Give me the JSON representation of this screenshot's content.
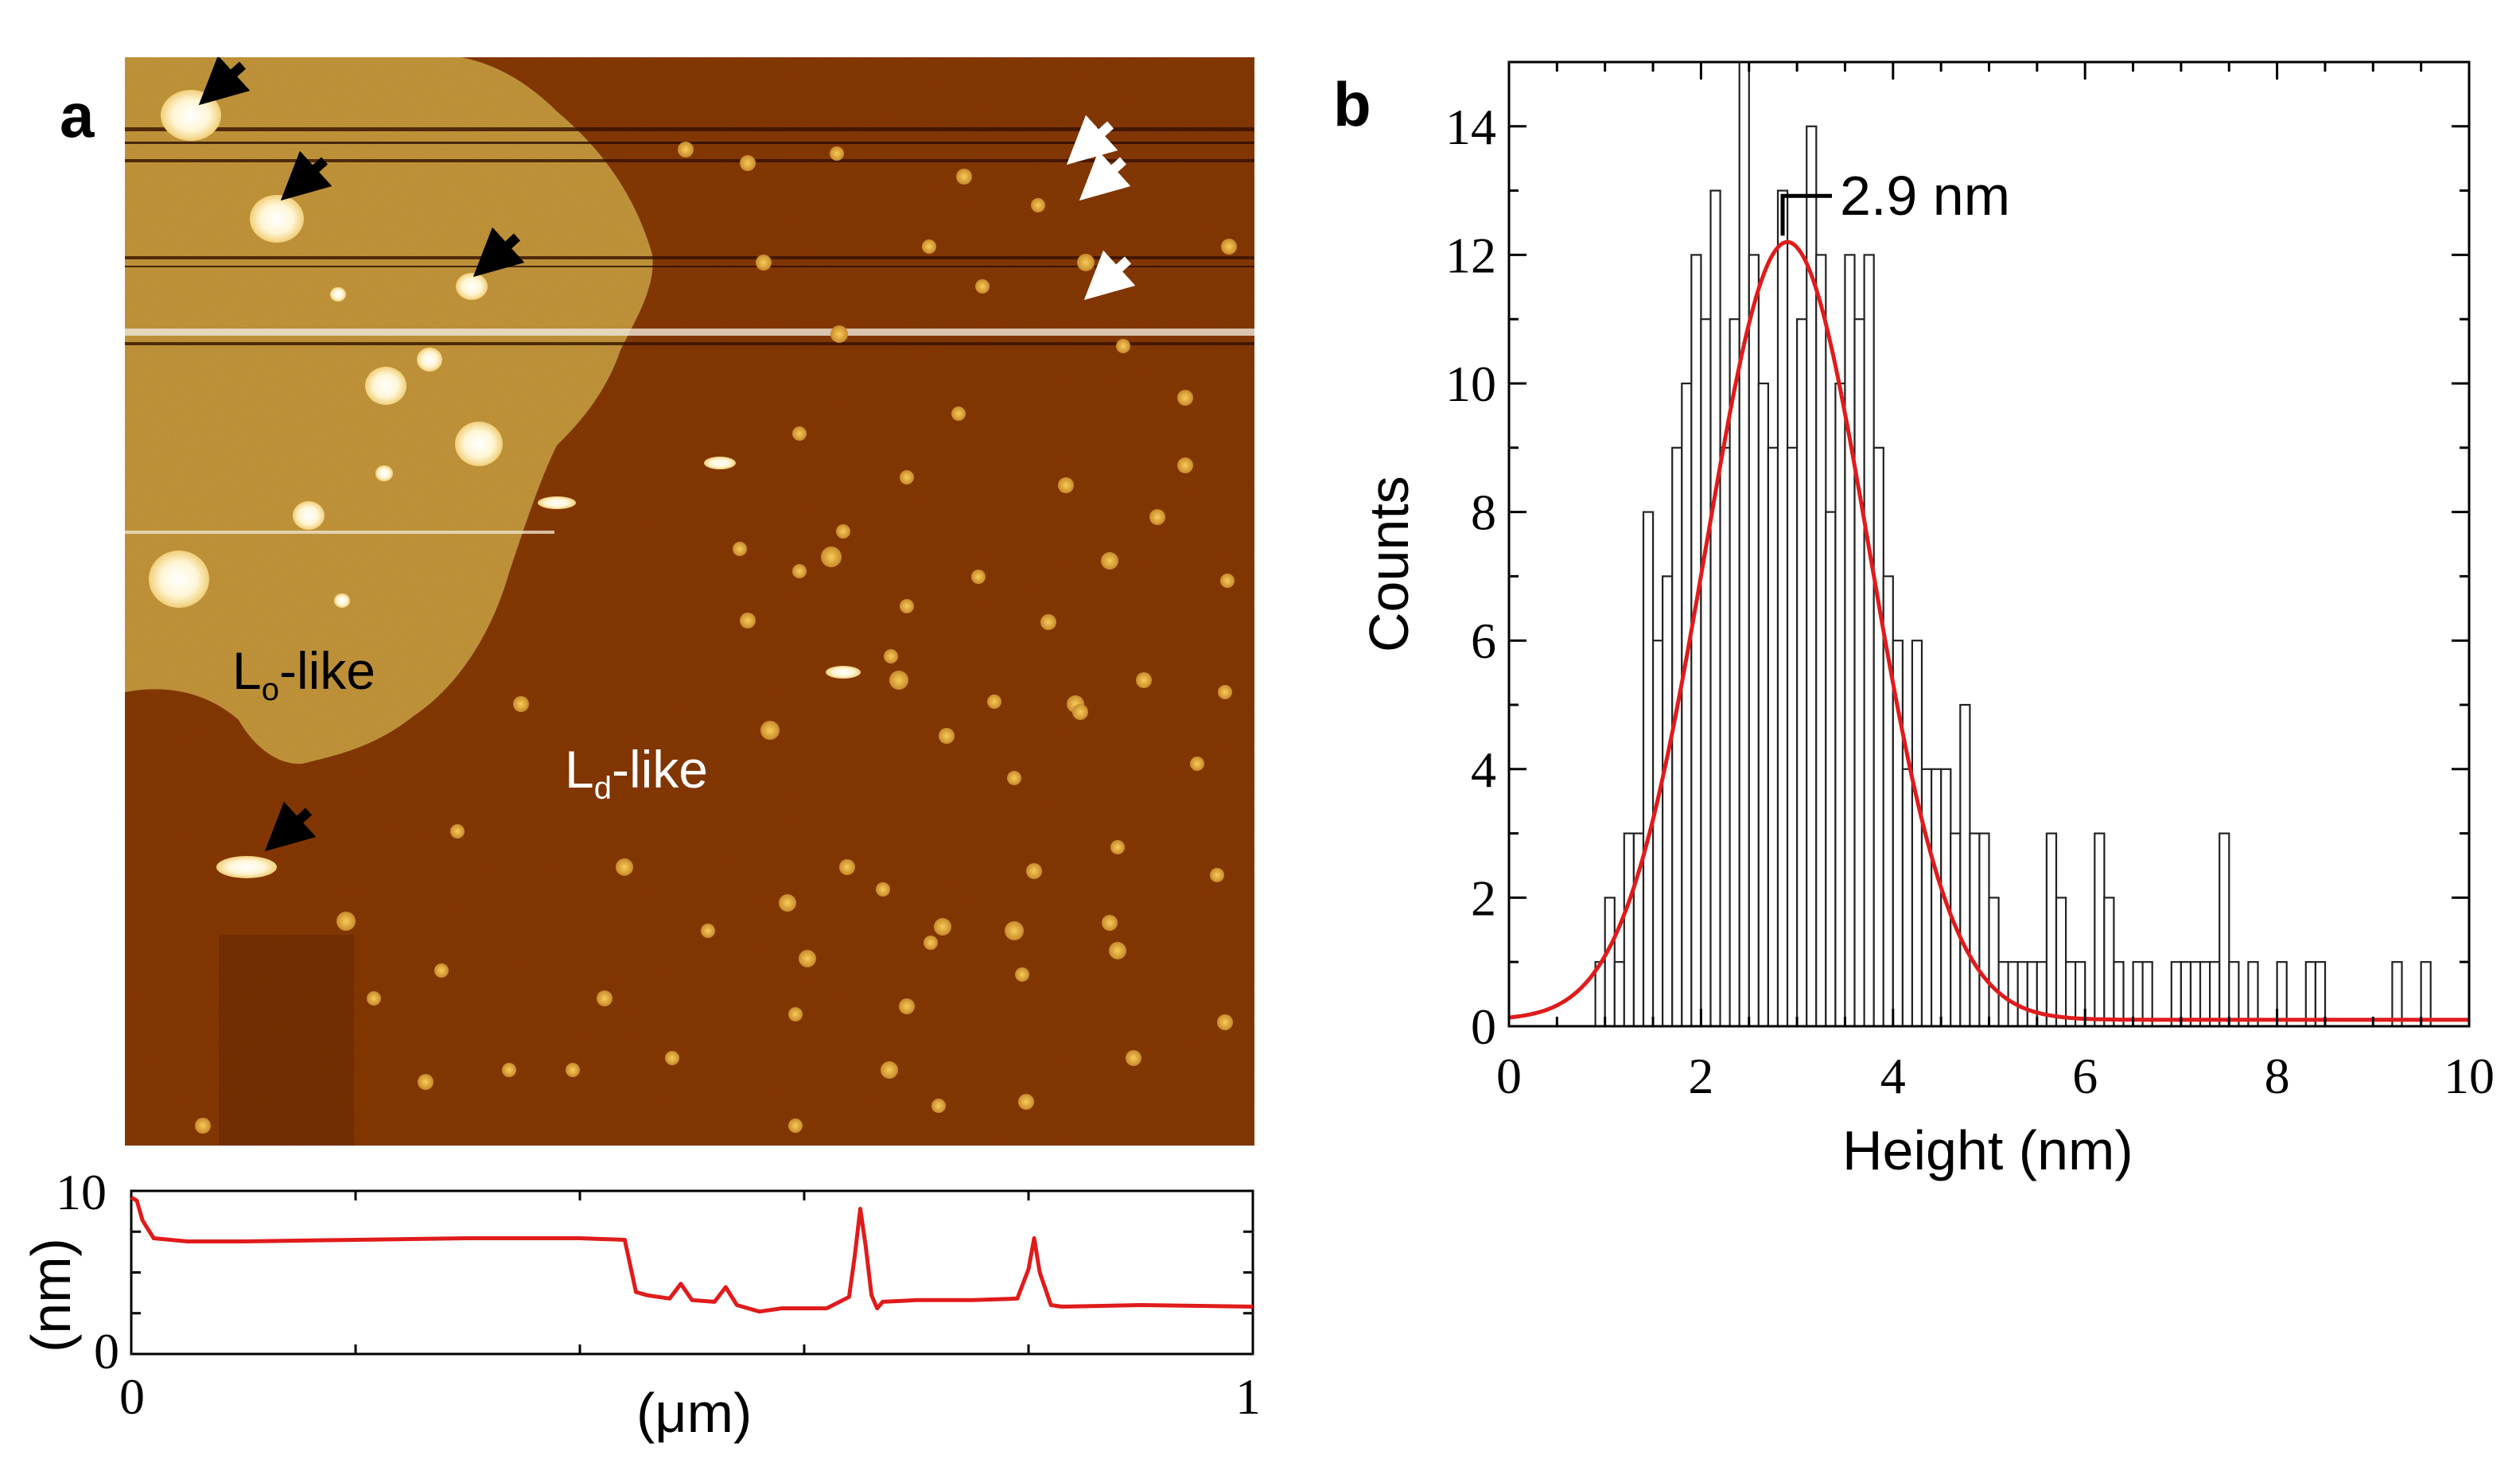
{
  "panels": {
    "a": {
      "letter": "a",
      "region_labels": [
        {
          "main": "L",
          "sub": "o",
          "suffix": "-like"
        },
        {
          "main": "L",
          "sub": "d",
          "suffix": "-like"
        }
      ],
      "colors": {
        "ld_phase": "#8a3a03",
        "lo_phase": "#c99a3c",
        "particle": "#e6b23c",
        "profile_line": "#e01b1b"
      }
    },
    "b": {
      "letter": "b",
      "peak_label": "2.9 nm"
    }
  },
  "chart_data": [
    {
      "type": "line",
      "panel": "a",
      "xlabel": "(μm)",
      "ylabel": "(nm)",
      "xlim": [
        0,
        1
      ],
      "ylim": [
        0,
        10
      ],
      "xticks": [
        "0",
        "1"
      ],
      "yticks": [
        "0",
        "10"
      ],
      "grid": false,
      "series": [
        {
          "x": [
            0,
            0.005,
            0.01,
            0.02,
            0.05,
            0.1,
            0.2,
            0.3,
            0.4,
            0.44,
            0.45,
            0.46,
            0.48,
            0.49,
            0.5,
            0.52,
            0.53,
            0.54,
            0.56,
            0.58,
            0.62,
            0.64,
            0.645,
            0.65,
            0.655,
            0.66,
            0.665,
            0.67,
            0.7,
            0.75,
            0.79,
            0.8,
            0.805,
            0.81,
            0.82,
            0.83,
            0.9,
            1.0
          ],
          "y": [
            9.6,
            9.4,
            8.2,
            7.1,
            6.9,
            6.9,
            7.0,
            7.1,
            7.1,
            7.0,
            3.8,
            3.6,
            3.4,
            4.3,
            3.3,
            3.2,
            4.1,
            3.0,
            2.6,
            2.8,
            2.8,
            3.5,
            6.0,
            8.9,
            6.5,
            3.6,
            2.8,
            3.2,
            3.3,
            3.3,
            3.4,
            5.2,
            7.1,
            5.0,
            3.0,
            2.9,
            3.0,
            2.9
          ],
          "color": "#e01b1b"
        }
      ]
    },
    {
      "type": "bar",
      "panel": "b",
      "xlabel": "Height (nm)",
      "ylabel": "Counts",
      "xlim": [
        0,
        10
      ],
      "ylim": [
        0,
        15
      ],
      "xticks": [
        "0",
        "2",
        "4",
        "6",
        "8",
        "10"
      ],
      "yticks": [
        "0",
        "2",
        "4",
        "6",
        "8",
        "10",
        "12",
        "14"
      ],
      "grid": false,
      "bin_width": 0.1,
      "bin_starts": [
        0.9,
        1.0,
        1.1,
        1.2,
        1.3,
        1.4,
        1.5,
        1.6,
        1.7,
        1.8,
        1.9,
        2.0,
        2.1,
        2.2,
        2.3,
        2.4,
        2.5,
        2.6,
        2.7,
        2.8,
        2.9,
        3.0,
        3.1,
        3.2,
        3.3,
        3.4,
        3.5,
        3.6,
        3.7,
        3.8,
        3.9,
        4.0,
        4.1,
        4.2,
        4.3,
        4.4,
        4.5,
        4.6,
        4.7,
        4.8,
        4.9,
        5.0,
        5.1,
        5.2,
        5.3,
        5.4,
        5.5,
        5.6,
        5.7,
        5.8,
        5.9,
        6.0,
        6.1,
        6.2,
        6.3,
        6.4,
        6.5,
        6.6,
        6.7,
        6.8,
        6.9,
        7.0,
        7.1,
        7.2,
        7.3,
        7.4,
        7.5,
        7.6,
        7.7,
        7.8,
        7.9,
        8.0,
        8.1,
        8.2,
        8.3,
        8.4,
        8.5,
        8.6,
        8.7,
        8.8,
        8.9,
        9.0,
        9.1,
        9.2,
        9.3,
        9.4,
        9.5,
        9.6
      ],
      "values": [
        1,
        2,
        1,
        3,
        3,
        8,
        6,
        7,
        9,
        10,
        12,
        11,
        13,
        9,
        11,
        15,
        12,
        10,
        9,
        13,
        9,
        11,
        14,
        12,
        8,
        10,
        12,
        11,
        12,
        9,
        7,
        6,
        4,
        6,
        4,
        4,
        4,
        3,
        5,
        3,
        3,
        2,
        1,
        1,
        1,
        1,
        1,
        3,
        2,
        1,
        1,
        0,
        3,
        2,
        1,
        0,
        1,
        1,
        0,
        0,
        1,
        1,
        1,
        1,
        1,
        3,
        1,
        0,
        1,
        0,
        0,
        1,
        0,
        0,
        1,
        1,
        0,
        0,
        0,
        0,
        0,
        0,
        0,
        1,
        0,
        0,
        1,
        0
      ],
      "fit": {
        "type": "gaussian",
        "color": "#e01b1b",
        "peak_x": 2.9,
        "peak_y": 12.2,
        "sigma": 0.85,
        "offset": 0.1
      }
    }
  ]
}
